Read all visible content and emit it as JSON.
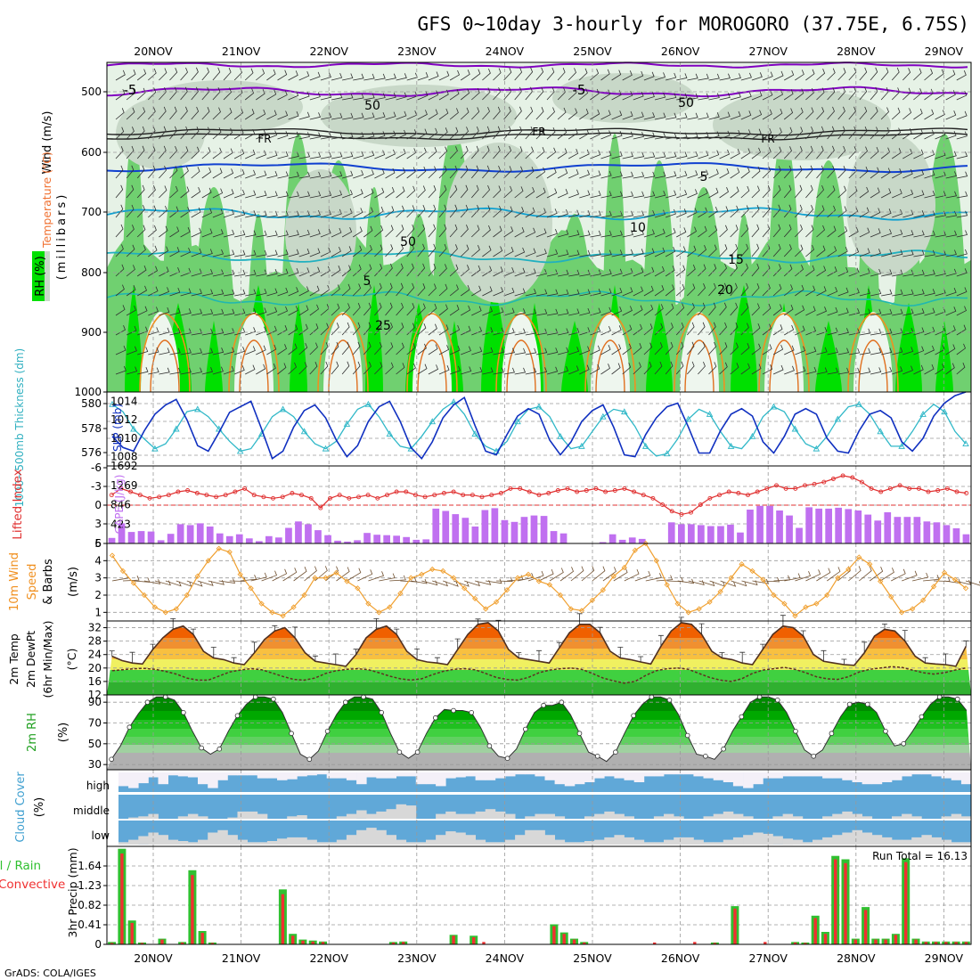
{
  "title": "GFS 0~10day 3-hourly for MOROGORO (37.75E, 6.75S)",
  "credit": "GrADS: COLA/IGES",
  "days": [
    "20NOV",
    "21NOV",
    "22NOV",
    "23NOV",
    "24NOV",
    "25NOV",
    "26NOV",
    "27NOV",
    "28NOV",
    "29NOV"
  ],
  "colors": {
    "grid": "#999999",
    "rh_green": "#00e000",
    "rh_mid": "#70d070",
    "rh_pale": "#c8dcc8",
    "temp_purple": "#8000c0",
    "temp_blue": "#1040d0",
    "temp_cyan": "#10a0d0",
    "temp_orange": "#f09020",
    "slp": "#1030c0",
    "thickness": "#30b8c8",
    "li": "#e03030",
    "cape": "#c070f0",
    "wind10": "#f0a030",
    "cloud_blue": "#60a8d8",
    "cloud_white": "#f4f0f8",
    "cloud_grey": "#d8d8d8",
    "precip_green": "#30c030",
    "precip_red": "#f03030"
  },
  "panels": {
    "upper": {
      "label_wind": "Wind (m/s)",
      "label_temp": "Temperature (°C)",
      "label_rh": "RH (%)",
      "label_mb": "(millibars)",
      "yticks": [
        "500",
        "600",
        "700",
        "800",
        "900",
        "1000"
      ],
      "contour_labels": [
        "-5",
        "-5",
        "FR",
        "FR",
        "FR",
        "5",
        "10",
        "15",
        "20",
        "5",
        "25",
        "50",
        "50",
        "50"
      ]
    },
    "slp": {
      "label_thk": "1000~500mb Thickness (dm)",
      "label_slp": "SLP (mb)",
      "left_ticks": [
        "580",
        "578",
        "576"
      ],
      "right_ticks": [
        "1014",
        "1012",
        "1010",
        "1008"
      ]
    },
    "cape": {
      "label_li": "Lifted Index",
      "label_cape": "CAPE (J/kg)",
      "left_ticks": [
        "-6",
        "-3",
        "0",
        "3",
        "6"
      ],
      "right_ticks": [
        "1692",
        "1269",
        "846",
        "423"
      ]
    },
    "wind10": {
      "label_a": "10m Wind",
      "label_b": "Speed",
      "label_c": "& Barbs",
      "label_units": "(m/s)",
      "yticks": [
        "5",
        "4",
        "3",
        "2",
        "1"
      ]
    },
    "temp2m": {
      "label_a": "2m Temp",
      "label_b": "2m DewPt",
      "label_c": "(6hr Min/Max)",
      "label_units": "(°C)",
      "yticks": [
        "32",
        "28",
        "24",
        "20",
        "16",
        "12"
      ]
    },
    "rh2m": {
      "label": "2m RH",
      "label_units": "(%)",
      "yticks": [
        "90",
        "70",
        "50",
        "30"
      ]
    },
    "cloud": {
      "label": "Cloud Cover",
      "label_units": "(%)",
      "levels": [
        "high",
        "middle",
        "low"
      ]
    },
    "precip": {
      "label_a": "tal / Rain",
      "label_b": "Convective",
      "label_units": "3hr Precip (mm)",
      "yticks": [
        "1.64",
        "1.23",
        "0.82",
        "0.41",
        "0"
      ],
      "run_total": "Run Total = 16.13"
    }
  },
  "chart_data": [
    {
      "type": "line",
      "name": "slp",
      "ylabel": "SLP (mb)",
      "ylim": [
        1007,
        1015
      ],
      "x_step_hours": 3,
      "values": [
        1010.2,
        1009.0,
        1008.6,
        1010.8,
        1012.6,
        1013.6,
        1014.2,
        1012.0,
        1009.2,
        1008.6,
        1010.6,
        1012.8,
        1013.4,
        1014.0,
        1011.0,
        1007.8,
        1008.6,
        1011.2,
        1013.0,
        1013.6,
        1012.2,
        1009.8,
        1008.0,
        1009.2,
        1011.8,
        1013.4,
        1014.0,
        1011.8,
        1009.0,
        1007.8,
        1009.6,
        1012.2,
        1013.6,
        1014.4,
        1011.4,
        1008.6,
        1008.2,
        1010.4,
        1012.4,
        1013.2,
        1012.6,
        1009.8,
        1008.2,
        1009.6,
        1011.8,
        1013.0,
        1013.6,
        1011.2,
        1008.2,
        1008.0,
        1010.4,
        1012.2,
        1013.4,
        1013.8,
        1011.2,
        1008.4,
        1008.4,
        1010.8,
        1012.6,
        1013.2,
        1012.4,
        1009.6,
        1008.4,
        1010.2,
        1012.6,
        1013.2,
        1012.6,
        1010.0,
        1008.6,
        1008.4,
        1010.8,
        1012.6,
        1013.0,
        1012.2,
        1009.6,
        1008.6,
        1010.0,
        1012.4,
        1013.8,
        1014.6,
        1015.0
      ]
    },
    {
      "type": "line",
      "name": "thickness",
      "ylabel": "1000~500mb Thickness (dm)",
      "ylim": [
        575,
        581
      ],
      "x_step_hours": 3,
      "values": [
        580.0,
        579.4,
        578.0,
        577.2,
        576.4,
        576.8,
        578.0,
        579.4,
        579.6,
        579.0,
        578.0,
        577.0,
        576.2,
        576.4,
        577.6,
        579.0,
        579.6,
        579.0,
        577.8,
        576.8,
        576.4,
        577.0,
        578.4,
        579.6,
        580.0,
        579.0,
        577.6,
        576.6,
        576.4,
        577.4,
        578.6,
        579.6,
        580.2,
        579.2,
        577.6,
        576.6,
        576.2,
        577.0,
        578.6,
        579.6,
        579.8,
        579.0,
        577.4,
        576.4,
        576.6,
        577.8,
        579.0,
        579.6,
        579.4,
        578.2,
        576.6,
        575.8,
        576.0,
        577.2,
        578.8,
        579.6,
        579.2,
        577.8,
        576.6,
        576.4,
        577.4,
        579.0,
        579.8,
        579.4,
        578.0,
        576.8,
        576.4,
        577.4,
        578.8,
        579.8,
        580.0,
        579.2,
        577.8,
        576.6,
        576.6,
        577.8,
        579.2,
        580.0,
        579.4,
        577.8,
        576.8
      ]
    },
    {
      "type": "line",
      "name": "lifted_index",
      "ylabel": "Lifted Index",
      "ylim": [
        6,
        -6
      ],
      "x_step_hours": 3,
      "values": [
        -1.5,
        -2.5,
        -2.0,
        -1.5,
        -1.0,
        -1.2,
        -1.5,
        -2.0,
        -2.2,
        -1.8,
        -1.5,
        -1.2,
        -1.5,
        -2.0,
        -2.5,
        -1.5,
        -1.2,
        -1.0,
        -1.2,
        -1.8,
        -1.5,
        -1.0,
        0.5,
        -1.0,
        -1.5,
        -1.0,
        -1.2,
        -1.5,
        -1.0,
        -1.5,
        -2.0,
        -2.0,
        -1.5,
        -1.2,
        -1.5,
        -1.8,
        -2.0,
        -1.5,
        -1.5,
        -1.2,
        -1.5,
        -1.8,
        -2.5,
        -2.5,
        -2.0,
        -1.5,
        -1.8,
        -2.2,
        -2.5,
        -2.0,
        -2.2,
        -2.5,
        -2.0,
        -2.2,
        -2.5,
        -2.0,
        -1.5,
        -1.0,
        0.0,
        1.0,
        1.5,
        1.2,
        0.0,
        -1.0,
        -1.5,
        -2.0,
        -1.8,
        -1.5,
        -2.0,
        -2.5,
        -3.0,
        -2.5,
        -2.5,
        -3.0,
        -3.2,
        -3.5,
        -4.0,
        -4.5,
        -4.2,
        -3.5,
        -2.5,
        -2.0,
        -2.5,
        -3.0,
        -2.5,
        -2.5,
        -2.0,
        -2.2,
        -2.5,
        -2.0,
        -1.8
      ]
    },
    {
      "type": "bar",
      "name": "cape",
      "ylabel": "CAPE (J/kg)",
      "ylim": [
        0,
        1692
      ],
      "x_step_hours": 3,
      "values": [
        120,
        440,
        250,
        270,
        260,
        70,
        210,
        420,
        400,
        440,
        370,
        220,
        160,
        200,
        110,
        50,
        160,
        130,
        340,
        480,
        420,
        290,
        180,
        60,
        40,
        70,
        230,
        190,
        180,
        170,
        140,
        80,
        90,
        760,
        710,
        640,
        560,
        370,
        730,
        770,
        510,
        470,
        580,
        610,
        600,
        270,
        220,
        0,
        0,
        0,
        30,
        200,
        80,
        130,
        100,
        0,
        0,
        460,
        420,
        420,
        400,
        380,
        380,
        410,
        240,
        740,
        820,
        820,
        720,
        610,
        340,
        790,
        760,
        760,
        780,
        750,
        720,
        630,
        500,
        680,
        580,
        580,
        580,
        480,
        460,
        400,
        330,
        200
      ]
    },
    {
      "type": "line",
      "name": "wind10m",
      "ylabel": "Speed (m/s)",
      "ylim": [
        0.5,
        5
      ],
      "x_step_hours": 3,
      "values": [
        4.3,
        3.4,
        2.7,
        2.0,
        1.3,
        1.0,
        1.2,
        2.0,
        3.1,
        4.0,
        4.7,
        4.5,
        3.2,
        2.4,
        1.5,
        1.0,
        0.8,
        1.3,
        2.0,
        3.0,
        3.0,
        3.3,
        2.8,
        2.4,
        1.5,
        1.0,
        1.3,
        2.1,
        3.0,
        3.2,
        3.5,
        3.4,
        3.0,
        2.4,
        1.8,
        1.2,
        1.6,
        2.3,
        3.0,
        3.2,
        2.8,
        2.6,
        2.0,
        1.2,
        1.1,
        1.7,
        2.3,
        3.1,
        3.6,
        4.6,
        5.0,
        4.0,
        2.6,
        1.5,
        1.0,
        1.2,
        1.6,
        2.2,
        3.0,
        3.8,
        3.4,
        2.9,
        2.0,
        1.5,
        0.8,
        1.3,
        1.5,
        2.0,
        3.0,
        3.5,
        4.2,
        3.8,
        2.8,
        1.9,
        1.0,
        1.2,
        1.7,
        2.5,
        3.3,
        2.9,
        2.4
      ]
    },
    {
      "type": "area",
      "name": "temp2m",
      "ylabel": "(°C)",
      "ylim": [
        12,
        34
      ],
      "x_step_hours": 3,
      "values": [
        23.5,
        22.2,
        21.5,
        21.2,
        25.5,
        29.0,
        31.5,
        32.5,
        30.0,
        25.0,
        23.0,
        22.5,
        21.5,
        21.0,
        24.5,
        28.5,
        31.0,
        32.0,
        29.0,
        24.5,
        22.0,
        21.5,
        21.0,
        20.5,
        24.0,
        29.0,
        31.5,
        32.5,
        30.0,
        25.0,
        22.5,
        21.8,
        21.5,
        21.0,
        25.5,
        30.0,
        33.0,
        33.5,
        31.0,
        25.5,
        23.0,
        22.5,
        22.0,
        21.5,
        26.0,
        30.5,
        33.0,
        33.0,
        30.5,
        25.0,
        23.0,
        22.5,
        21.8,
        21.2,
        26.5,
        31.0,
        33.5,
        33.0,
        30.0,
        25.0,
        23.0,
        22.5,
        21.5,
        21.0,
        25.5,
        30.0,
        32.5,
        32.0,
        29.5,
        24.0,
        22.0,
        21.5,
        21.0,
        20.8,
        24.5,
        29.5,
        31.5,
        31.0,
        28.0,
        23.5,
        21.5,
        21.2,
        21.0,
        20.5,
        26.5
      ]
    },
    {
      "type": "line",
      "name": "dewpoint2m",
      "ylabel": "(°C)",
      "ylim": [
        12,
        34
      ],
      "x_step_hours": 3,
      "values": [
        19.2,
        19.5,
        19.8,
        19.9,
        19.6,
        19.0,
        18.2,
        17.0,
        16.4,
        16.4,
        17.6,
        18.8,
        19.4,
        19.8,
        19.5,
        18.5,
        17.5,
        16.6,
        16.4,
        17.0,
        18.4,
        19.2,
        19.6,
        19.8,
        19.5,
        18.6,
        17.6,
        16.8,
        16.4,
        16.8,
        18.0,
        19.0,
        19.6,
        19.8,
        19.5,
        18.4,
        17.2,
        16.6,
        16.4,
        17.2,
        18.6,
        19.4,
        19.8,
        20.0,
        19.6,
        18.4,
        17.0,
        16.2,
        15.5,
        16.0,
        17.8,
        19.2,
        19.8,
        20.0,
        19.6,
        18.4,
        17.2,
        16.4,
        16.0,
        16.8,
        18.4,
        19.4,
        19.8,
        20.2,
        19.6,
        18.6,
        17.4,
        16.8,
        16.6,
        17.4,
        18.8,
        19.6,
        20.0,
        20.4,
        20.2,
        19.4,
        18.6,
        18.2,
        18.6,
        19.4,
        20.0
      ]
    },
    {
      "type": "area",
      "name": "rh2m",
      "ylabel": "(%)",
      "ylim": [
        25,
        97
      ],
      "x_step_hours": 3,
      "values": [
        35,
        48,
        66,
        79,
        90,
        95,
        95,
        92,
        80,
        62,
        46,
        40,
        45,
        62,
        77,
        88,
        95,
        95,
        93,
        80,
        60,
        40,
        35,
        43,
        62,
        78,
        90,
        95,
        95,
        93,
        80,
        60,
        42,
        36,
        42,
        60,
        75,
        83,
        82,
        82,
        80,
        66,
        48,
        38,
        36,
        45,
        64,
        80,
        87,
        87,
        90,
        78,
        60,
        42,
        38,
        33,
        42,
        60,
        77,
        88,
        95,
        95,
        92,
        78,
        58,
        40,
        38,
        35,
        45,
        62,
        76,
        90,
        95,
        95,
        92,
        80,
        62,
        44,
        38,
        44,
        60,
        76,
        88,
        90,
        88,
        80,
        62,
        48,
        50,
        62,
        76,
        88,
        95,
        95,
        93,
        82
      ]
    },
    {
      "type": "bar",
      "name": "cloud_high",
      "ylabel": "(%)",
      "ylim": [
        0,
        100
      ],
      "x_step_hours": 3,
      "values": [
        30,
        20,
        45,
        75,
        40,
        85,
        80,
        75,
        40,
        20,
        60,
        85,
        85,
        85,
        70,
        70,
        60,
        65,
        80,
        85,
        90,
        70,
        70,
        60,
        40,
        75,
        70,
        70,
        80,
        80,
        40,
        40,
        30,
        70,
        75,
        80,
        60,
        60,
        70,
        80,
        90,
        90,
        80,
        60,
        40,
        30,
        40,
        50,
        70,
        80,
        70,
        60,
        50,
        80,
        80,
        90,
        90,
        90,
        80,
        70,
        60,
        50,
        30,
        20,
        40,
        70,
        70,
        80,
        80,
        80,
        80,
        70,
        70,
        60,
        50,
        40,
        40,
        50,
        60,
        80,
        90,
        90,
        80,
        70,
        60,
        40
      ]
    },
    {
      "type": "bar",
      "name": "cloud_middle",
      "ylabel": "(%)",
      "ylim": [
        0,
        100
      ],
      "x_step_hours": 3,
      "values": [
        0,
        5,
        10,
        20,
        0,
        0,
        10,
        20,
        10,
        0,
        0,
        5,
        30,
        30,
        20,
        0,
        0,
        10,
        15,
        0,
        0,
        0,
        10,
        20,
        35,
        20,
        30,
        40,
        60,
        55,
        0,
        0,
        20,
        30,
        20,
        20,
        30,
        40,
        30,
        20,
        0,
        10,
        20,
        20,
        10,
        0,
        0,
        10,
        20,
        30,
        20,
        10,
        0,
        0,
        10,
        20,
        10,
        0,
        0,
        10,
        20,
        30,
        20,
        10,
        0,
        0,
        10,
        20,
        10,
        0,
        0,
        10,
        20,
        30,
        20,
        10,
        0,
        0,
        10,
        20,
        10,
        0,
        0,
        10,
        20,
        10
      ]
    },
    {
      "type": "bar",
      "name": "cloud_low",
      "ylabel": "(%)",
      "ylim": [
        0,
        100
      ],
      "x_step_hours": 3,
      "values": [
        10,
        20,
        35,
        50,
        40,
        20,
        15,
        10,
        20,
        50,
        60,
        40,
        20,
        10,
        10,
        15,
        25,
        30,
        30,
        20,
        10,
        10,
        20,
        40,
        60,
        70,
        60,
        40,
        20,
        10,
        10,
        20,
        40,
        55,
        50,
        40,
        20,
        10,
        10,
        20,
        40,
        60,
        60,
        40,
        20,
        10,
        10,
        15,
        20,
        30,
        40,
        30,
        20,
        10,
        10,
        20,
        30,
        30,
        20,
        10,
        10,
        20,
        30,
        40,
        50,
        45,
        35,
        25,
        20,
        10,
        20,
        30,
        40,
        50,
        60,
        50,
        40,
        30,
        20,
        20,
        30,
        40,
        30,
        20,
        10,
        10
      ]
    },
    {
      "type": "bar",
      "name": "precip_total",
      "ylabel": "3hr Precip (mm)",
      "ylim": [
        0,
        2.05
      ],
      "x_step_hours": 3,
      "values": [
        0.05,
        2.0,
        0.5,
        0.04,
        0,
        0.12,
        0,
        0.05,
        1.55,
        0.28,
        0.04,
        0,
        0,
        0,
        0,
        0,
        0,
        1.15,
        0.22,
        0.1,
        0.08,
        0.06,
        0,
        0,
        0,
        0,
        0,
        0,
        0.05,
        0.06,
        0,
        0,
        0,
        0,
        0.2,
        0,
        0.18,
        0,
        0,
        0,
        0,
        0,
        0,
        0,
        0.42,
        0.25,
        0.12,
        0.05,
        0,
        0,
        0,
        0,
        0,
        0,
        0,
        0,
        0,
        0,
        0,
        0,
        0.04,
        0,
        0.8,
        0,
        0,
        0,
        0,
        0,
        0.05,
        0.04,
        0.6,
        0.26,
        1.85,
        1.78,
        0.12,
        0.78,
        0.12,
        0.12,
        0.22,
        1.8,
        0.12,
        0.06,
        0.06,
        0.06,
        0.06,
        0.06
      ]
    },
    {
      "type": "bar",
      "name": "precip_convective",
      "ylabel": "3hr Precip (mm)",
      "ylim": [
        0,
        2.05
      ],
      "x_step_hours": 3,
      "values": [
        0.03,
        1.9,
        0.45,
        0.03,
        0,
        0.1,
        0,
        0.04,
        1.45,
        0.24,
        0.03,
        0,
        0,
        0,
        0,
        0,
        0,
        1.05,
        0.18,
        0.08,
        0.06,
        0.05,
        0,
        0,
        0,
        0,
        0,
        0,
        0.04,
        0.05,
        0,
        0,
        0,
        0,
        0.18,
        0,
        0.15,
        0.05,
        0,
        0,
        0,
        0,
        0,
        0,
        0.38,
        0.22,
        0.1,
        0.04,
        0,
        0,
        0,
        0,
        0,
        0,
        0.04,
        0,
        0,
        0,
        0.05,
        0,
        0.03,
        0,
        0.75,
        0,
        0,
        0.05,
        0,
        0,
        0.04,
        0.03,
        0.55,
        0.22,
        1.78,
        1.7,
        0.1,
        0.72,
        0.1,
        0.1,
        0.2,
        1.72,
        0.1,
        0.05,
        0.05,
        0.05,
        0.05,
        0.05
      ]
    }
  ]
}
